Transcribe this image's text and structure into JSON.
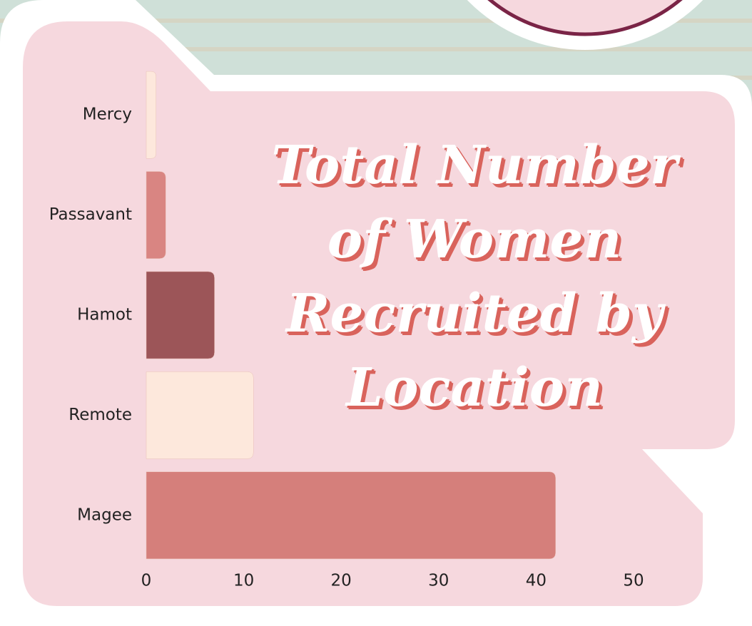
{
  "chart_data": {
    "type": "hbar",
    "title": "Total Number of Women Recruited by Location",
    "categories": [
      "Mercy",
      "Passavant",
      "Hamot",
      "Remote",
      "Magee"
    ],
    "values": [
      1,
      2,
      7,
      11,
      42
    ],
    "colors": [
      "#fde8dc",
      "#d98582",
      "#9c5558",
      "#fde8dc",
      "#d57f7b"
    ],
    "xlim": [
      0,
      50
    ],
    "xticks": [
      0,
      10,
      20,
      30,
      40,
      50
    ],
    "grid": false
  }
}
